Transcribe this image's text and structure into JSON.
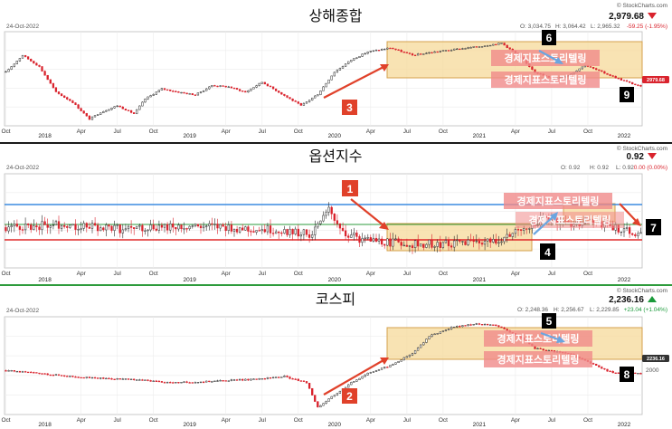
{
  "source_label": "© StockCharts.com",
  "watermark_text": "경제지표스토리텔링",
  "colors": {
    "up": "#2b2b2b",
    "down": "#d9232d",
    "highlight_fill": "#f6d99a",
    "highlight_stroke": "#d4a24c",
    "arrow_red": "#e0412a",
    "arrow_blue": "#6aa5e0",
    "band_blue": "#3b8be0",
    "band_red": "#e02828",
    "band_green": "#2e9b3c"
  },
  "chart_data": [
    {
      "type": "candlestick",
      "title": "상해종합",
      "date": "24-Oct-2022",
      "last_value": "2,979.68",
      "last_tag": "2979.68",
      "direction": "down",
      "ohlc": {
        "o": "O: 3,034.75",
        "h": "H: 3,064.42",
        "l": "L: 2,965.32",
        "chg": "-59.25 (-1.95%)"
      },
      "years": [
        "2018",
        "2019",
        "2020",
        "2021",
        "2022"
      ],
      "month_ticks": [
        "Oct",
        "Apr",
        "Jul",
        "Oct",
        "Apr",
        "Jul",
        "Oct",
        "Apr",
        "Jul",
        "Oct",
        "Apr",
        "Jul",
        "Oct"
      ],
      "ylim": [
        2400,
        3800
      ],
      "anchors": [
        [
          0,
          3200
        ],
        [
          6,
          3450
        ],
        [
          12,
          3280
        ],
        [
          18,
          2900
        ],
        [
          24,
          2750
        ],
        [
          30,
          2500
        ],
        [
          34,
          2600
        ],
        [
          40,
          2700
        ],
        [
          46,
          2580
        ],
        [
          50,
          2800
        ],
        [
          56,
          2950
        ],
        [
          62,
          2900
        ],
        [
          68,
          2860
        ],
        [
          74,
          3000
        ],
        [
          80,
          2980
        ],
        [
          86,
          2900
        ],
        [
          92,
          3050
        ],
        [
          100,
          2850
        ],
        [
          106,
          2700
        ],
        [
          112,
          2870
        ],
        [
          118,
          3200
        ],
        [
          124,
          3380
        ],
        [
          130,
          3500
        ],
        [
          138,
          3560
        ],
        [
          146,
          3450
        ],
        [
          154,
          3500
        ],
        [
          162,
          3540
        ],
        [
          170,
          3580
        ],
        [
          178,
          3630
        ],
        [
          184,
          3450
        ],
        [
          190,
          3200
        ],
        [
          196,
          3100
        ],
        [
          202,
          3150
        ],
        [
          208,
          3300
        ],
        [
          214,
          3200
        ],
        [
          220,
          3100
        ],
        [
          228,
          2980
        ]
      ],
      "badges": [
        {
          "label": "3"
        },
        {
          "label": "6"
        },
        {
          "label": "9"
        }
      ]
    },
    {
      "type": "candlestick",
      "title": "옵션지수",
      "date": "24-Oct-2022",
      "last_value": "0.92",
      "direction": "down",
      "ohlc": {
        "o": "O: 0.92",
        "h": "H: 0.92",
        "l": "L: 0.92",
        "chg": "0.00 (0.00%)"
      },
      "years": [
        "2018",
        "2019",
        "2020",
        "2021",
        "2022"
      ],
      "month_ticks": [
        "Oct",
        "Apr",
        "Jul",
        "Oct",
        "Apr",
        "Jul",
        "Oct",
        "Apr",
        "Jul",
        "Oct",
        "Apr",
        "Jul",
        "Oct"
      ],
      "ylim": [
        0.4,
        1.8
      ],
      "anchors": [
        [
          0,
          1.0
        ],
        [
          20,
          1.05
        ],
        [
          40,
          0.98
        ],
        [
          60,
          1.02
        ],
        [
          80,
          1.0
        ],
        [
          100,
          0.95
        ],
        [
          110,
          0.9
        ],
        [
          116,
          1.25
        ],
        [
          122,
          0.9
        ],
        [
          130,
          0.8
        ],
        [
          150,
          0.75
        ],
        [
          170,
          0.78
        ],
        [
          180,
          0.85
        ],
        [
          186,
          1.0
        ],
        [
          194,
          1.15
        ],
        [
          202,
          1.05
        ],
        [
          210,
          1.12
        ],
        [
          218,
          1.0
        ],
        [
          228,
          0.92
        ]
      ],
      "badges": [
        {
          "label": "1"
        },
        {
          "label": "4"
        },
        {
          "label": "7"
        }
      ]
    },
    {
      "type": "candlestick",
      "title": "코스피",
      "date": "24-Oct-2022",
      "last_value": "2,236.16",
      "last_tag": "2236.16",
      "direction": "up",
      "ohlc": {
        "o": "O: 2,248.36",
        "h": "H: 2,256.67",
        "l": "L: 2,229.85",
        "chg": "+23.04 (+1.04%)"
      },
      "y_tick": "2000",
      "years": [
        "2018",
        "2019",
        "2020",
        "2021",
        "2022"
      ],
      "month_ticks": [
        "Oct",
        "Apr",
        "Jul",
        "Oct",
        "Apr",
        "Jul",
        "Oct",
        "Apr",
        "Jul",
        "Oct",
        "Apr",
        "Jul",
        "Oct"
      ],
      "ylim": [
        1400,
        3400
      ],
      "anchors": [
        [
          0,
          2300
        ],
        [
          10,
          2250
        ],
        [
          20,
          2200
        ],
        [
          30,
          2150
        ],
        [
          40,
          2130
        ],
        [
          50,
          2100
        ],
        [
          60,
          2050
        ],
        [
          70,
          2070
        ],
        [
          80,
          2100
        ],
        [
          90,
          2120
        ],
        [
          100,
          2180
        ],
        [
          108,
          2050
        ],
        [
          112,
          1550
        ],
        [
          118,
          1800
        ],
        [
          124,
          2050
        ],
        [
          130,
          2250
        ],
        [
          138,
          2400
        ],
        [
          146,
          2650
        ],
        [
          152,
          3000
        ],
        [
          160,
          3180
        ],
        [
          168,
          3250
        ],
        [
          176,
          3230
        ],
        [
          184,
          3000
        ],
        [
          190,
          2750
        ],
        [
          196,
          2700
        ],
        [
          202,
          2650
        ],
        [
          210,
          2450
        ],
        [
          218,
          2250
        ],
        [
          228,
          2236
        ]
      ],
      "badges": [
        {
          "label": "2"
        },
        {
          "label": "5"
        },
        {
          "label": "8"
        }
      ]
    }
  ]
}
